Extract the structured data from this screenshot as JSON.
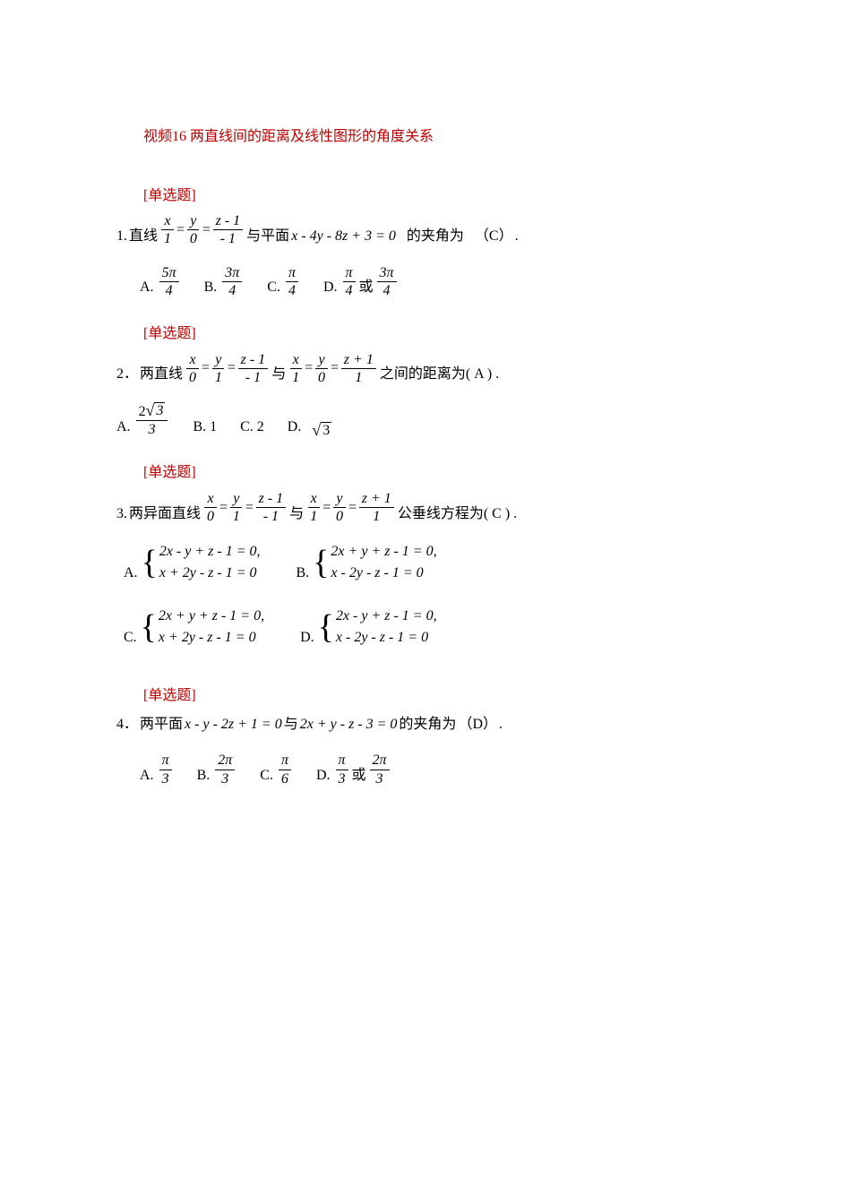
{
  "title": "视频16 两直线间的距离及线性图形的角度关系",
  "tag": "[单选题]",
  "q1": {
    "num": "1.",
    "pre": "直线",
    "L": {
      "n1": "x",
      "d1": "1",
      "n2": "y",
      "d2": "0",
      "n3": "z - 1",
      "d3": "- 1"
    },
    "mid": "与平面",
    "plane": "x - 4y - 8z + 3 = 0",
    "post1": "的夹角为",
    "ans": "（C）",
    "post2": ".",
    "A": {
      "l": "A.",
      "n": "5π",
      "d": "4"
    },
    "B": {
      "l": "B.",
      "n": "3π",
      "d": "4"
    },
    "C": {
      "l": "C.",
      "n": "π",
      "d": "4"
    },
    "D": {
      "l": "D.",
      "n1": "π",
      "d1": "4",
      "or": "或",
      "n2": "3π",
      "d2": "4"
    }
  },
  "q2": {
    "num": "2．",
    "pre": "两直线",
    "L1": {
      "n1": "x",
      "d1": "0",
      "n2": "y",
      "d2": "1",
      "n3": "z - 1",
      "d3": "- 1"
    },
    "mid": "与",
    "L2": {
      "n1": "x",
      "d1": "1",
      "n2": "y",
      "d2": "0",
      "n3": "z + 1",
      "d3": "1"
    },
    "post": "之间的距离为( A  ) .",
    "A": {
      "l": "A.",
      "num_top": "2",
      "num_sqrt": "3",
      "d": "3"
    },
    "B": {
      "l": "B.",
      "v": "1"
    },
    "C": {
      "l": "C.",
      "v": "2"
    },
    "D": {
      "l": "D.",
      "sqrt": "3"
    }
  },
  "q3": {
    "num": "3.",
    "pre": "两异面直线",
    "L1": {
      "n1": "x",
      "d1": "0",
      "n2": "y",
      "d2": "1",
      "n3": "z - 1",
      "d3": "- 1"
    },
    "mid": "与",
    "L2": {
      "n1": "x",
      "d1": "1",
      "n2": "y",
      "d2": "0",
      "n3": "z + 1",
      "d3": "1"
    },
    "post": "公垂线方程为( C ) .",
    "A": {
      "l": "A.",
      "r1": "2x -  y + z - 1 = 0,",
      "r2": "x + 2y -  z - 1 = 0"
    },
    "B": {
      "l": "B.",
      "r1": "2x + y + z - 1 = 0,",
      "r2": "x -  2y -  z - 1 = 0"
    },
    "C": {
      "l": "C.",
      "r1": "2x + y + z - 1 = 0,",
      "r2": "x + 2y -  z - 1 = 0"
    },
    "D": {
      "l": "D.",
      "r1": "2x -  y + z - 1 = 0,",
      "r2": "x -  2y -  z - 1 = 0"
    }
  },
  "q4": {
    "num": "4．",
    "pre": "两平面",
    "p1": "x -  y -  2z + 1 = 0",
    "mid": "与",
    "p2": "2x + y -  z -  3 = 0",
    "post1": "的夹角为",
    "ans": "（D）",
    "post2": ".",
    "A": {
      "l": "A.",
      "n": "π",
      "d": "3"
    },
    "B": {
      "l": "B.",
      "n": "2π",
      "d": "3"
    },
    "C": {
      "l": "C.",
      "n": "π",
      "d": "6"
    },
    "D": {
      "l": "D.",
      "n1": "π",
      "d1": "3",
      "or": "或",
      "n2": "2π",
      "d2": "3"
    }
  }
}
